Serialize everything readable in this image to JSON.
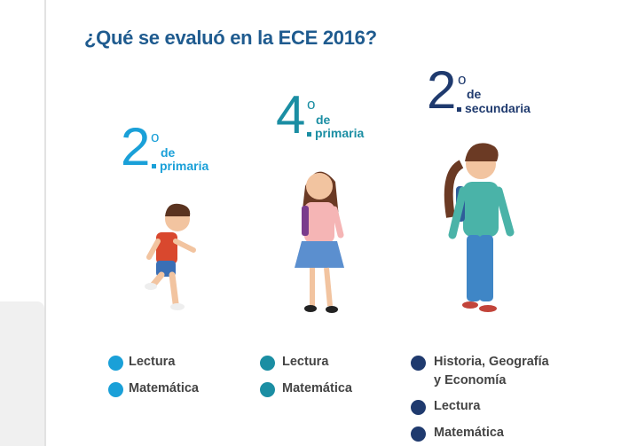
{
  "title": "¿Qué se evaluó en la ECE 2016?",
  "groups": [
    {
      "number": "2",
      "ordinal": "o",
      "prefix": "de",
      "level": "primaria",
      "subjects": [
        "Lectura",
        "Matemática"
      ]
    },
    {
      "number": "4",
      "ordinal": "o",
      "prefix": "de",
      "level": "primaria",
      "subjects": [
        "Lectura",
        "Matemática"
      ]
    },
    {
      "number": "2",
      "ordinal": "o",
      "prefix": "de",
      "level": "secundaria",
      "subjects": [
        "Historia, Geografía y Economía",
        "Lectura",
        "Matemática"
      ]
    }
  ]
}
